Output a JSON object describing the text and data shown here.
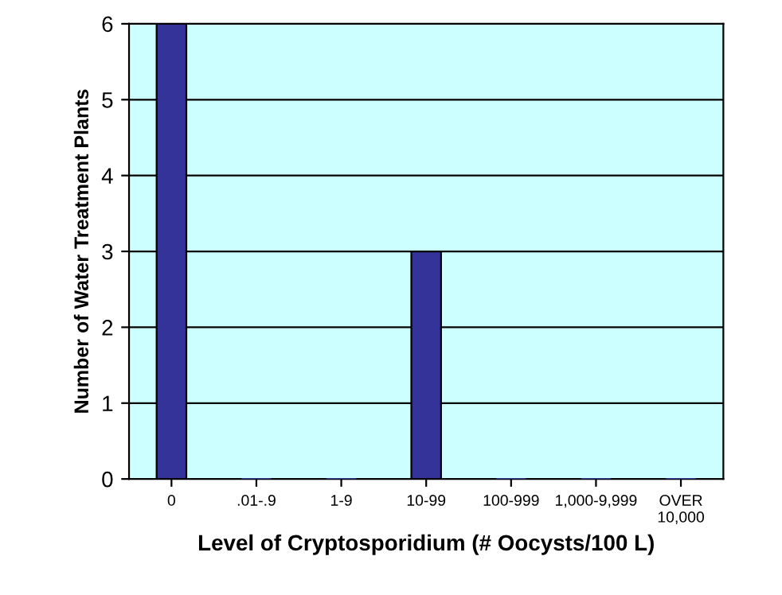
{
  "chart_data": {
    "type": "bar",
    "xlabel": "Level of Cryptosporidium (# Oocysts/100 L)",
    "ylabel": "Number of Water Treatment Plants",
    "categories": [
      "0",
      ".01-.9",
      "1-9",
      "10-99",
      "100-999",
      "1,000-9,999",
      "OVER\n10,000"
    ],
    "values": [
      6,
      0,
      0,
      3,
      0,
      0,
      0
    ],
    "color": "#333399",
    "ylim": [
      0,
      6
    ],
    "yticks": [
      0,
      1,
      2,
      3,
      4,
      5,
      6
    ],
    "grid": "y"
  }
}
